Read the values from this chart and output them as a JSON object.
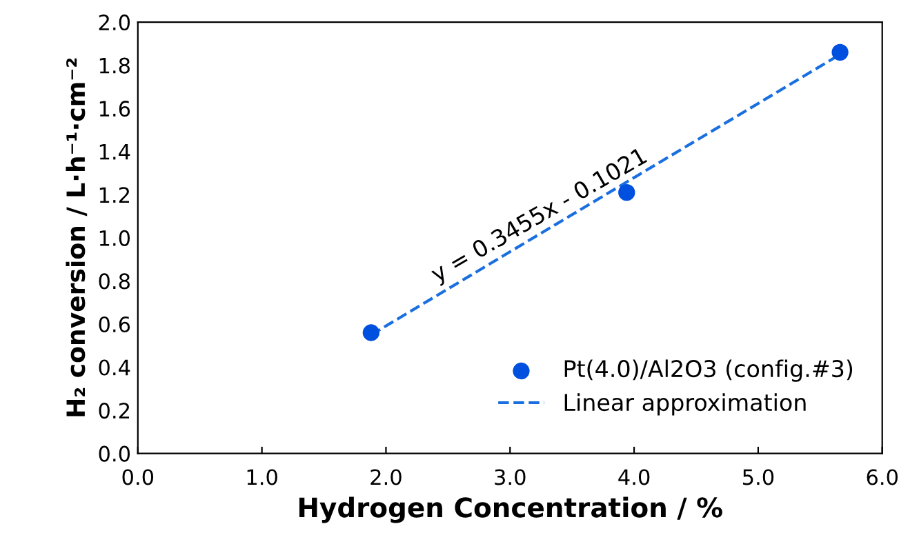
{
  "chart_data": {
    "type": "scatter",
    "xlabel": "Hydrogen Concentration / %",
    "ylabel": "H₂ conversion / L·h⁻¹·cm⁻²",
    "series": [
      {
        "name": "Pt(4.0)/Al2O3 (config.#3)",
        "color": "#0050e0",
        "marker": "circle",
        "x": [
          1.88,
          3.94,
          5.66
        ],
        "values": [
          0.56,
          1.21,
          1.86
        ]
      },
      {
        "name": "Linear approximation",
        "type": "line",
        "color": "#1a6fe0",
        "line_style": "dashed",
        "marker": "none",
        "x": [
          1.88,
          5.66
        ],
        "values": [
          0.55,
          1.85
        ]
      }
    ],
    "annotations": [
      "y = 0.3455x - 0.1021"
    ],
    "xlim": [
      0,
      6
    ],
    "ylim": [
      0,
      2
    ],
    "xticks": [
      {
        "value": 0,
        "label": "0.0"
      },
      {
        "value": 1,
        "label": "1.0"
      },
      {
        "value": 2,
        "label": "2.0"
      },
      {
        "value": 3,
        "label": "3.0"
      },
      {
        "value": 4,
        "label": "4.0"
      },
      {
        "value": 5,
        "label": "5.0"
      },
      {
        "value": 6,
        "label": "6.0"
      }
    ],
    "yticks": [
      {
        "value": 0,
        "label": "0.0"
      },
      {
        "value": 0.2,
        "label": "0.2"
      },
      {
        "value": 0.4,
        "label": "0.4"
      },
      {
        "value": 0.6,
        "label": "0.6"
      },
      {
        "value": 0.8,
        "label": "0.8"
      },
      {
        "value": 1,
        "label": "1.0"
      },
      {
        "value": 1.2,
        "label": "1.2"
      },
      {
        "value": 1.4,
        "label": "1.4"
      },
      {
        "value": 1.6,
        "label": "1.6"
      },
      {
        "value": 1.8,
        "label": "1.8"
      },
      {
        "value": 2,
        "label": "2.0"
      }
    ],
    "grid": false,
    "legend": "bottom right"
  }
}
